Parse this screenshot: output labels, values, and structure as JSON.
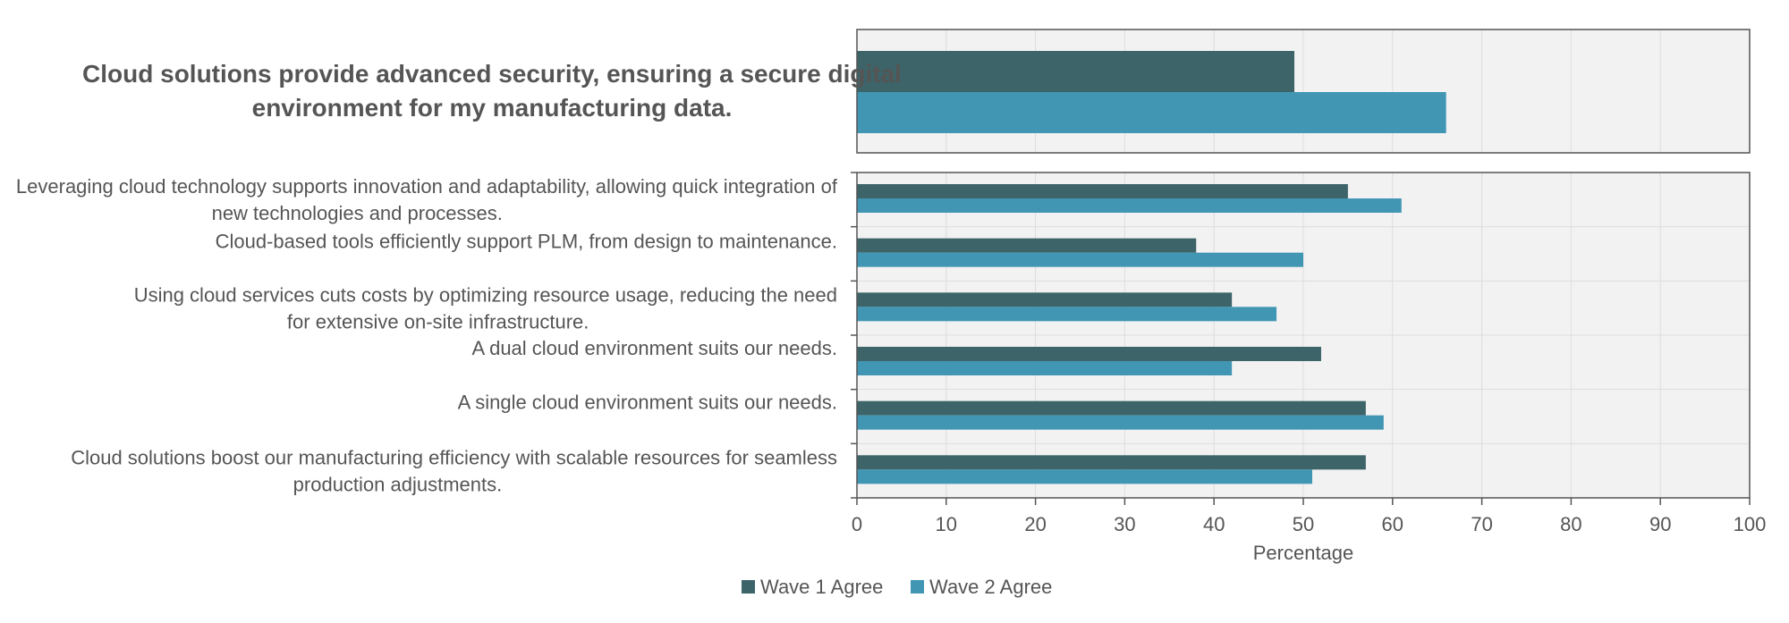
{
  "chart_data": {
    "type": "bar",
    "orientation": "horizontal",
    "highlight": {
      "category": "Cloud solutions provide advanced security, ensuring a secure digital environment for my manufacturing data.",
      "values": [
        49,
        66
      ]
    },
    "categories": [
      "Leveraging cloud technology supports innovation and adaptability, allowing quick integration of new technologies and processes.",
      "Cloud-based tools efficiently support PLM, from design to maintenance.",
      "Using cloud services cuts costs by optimizing resource usage, reducing the need for extensive on-site infrastructure.",
      "A dual cloud environment suits our needs.",
      "A single cloud environment suits our needs.",
      "Cloud solutions boost our manufacturing efficiency with scalable resources for seamless production adjustments."
    ],
    "series": [
      {
        "name": "Wave 1 Agree",
        "color": "#3c6469",
        "values": [
          55,
          38,
          42,
          52,
          57,
          57
        ]
      },
      {
        "name": "Wave 2 Agree",
        "color": "#4196b4",
        "values": [
          61,
          50,
          47,
          42,
          59,
          51
        ]
      }
    ],
    "xlabel": "Percentage",
    "xlim": [
      0,
      100
    ],
    "xticks": [
      0,
      10,
      20,
      30,
      40,
      50,
      60,
      70,
      80,
      90,
      100
    ],
    "grid": true,
    "legend_position": "bottom-center"
  }
}
